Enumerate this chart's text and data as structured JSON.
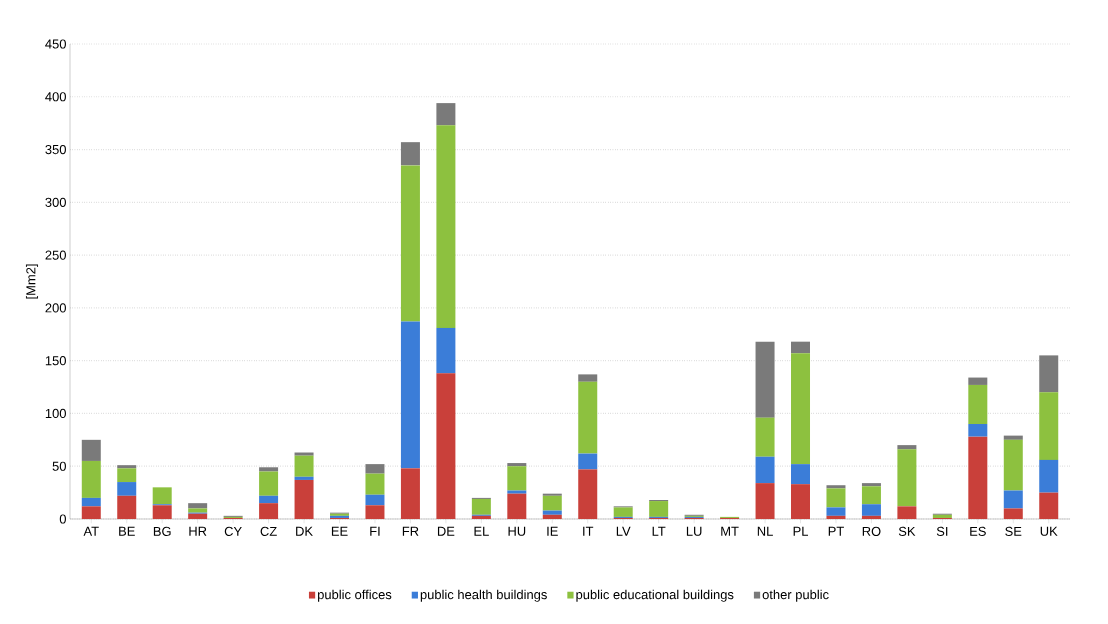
{
  "chart_data": {
    "type": "bar",
    "stacked": true,
    "ylabel": "[Mm2]",
    "categories": [
      "AT",
      "BE",
      "BG",
      "HR",
      "CY",
      "CZ",
      "DK",
      "EE",
      "FI",
      "FR",
      "DE",
      "EL",
      "HU",
      "IE",
      "IT",
      "LV",
      "LT",
      "LU",
      "MT",
      "NL",
      "PL",
      "PT",
      "RO",
      "SK",
      "SI",
      "ES",
      "SE",
      "UK"
    ],
    "series": [
      {
        "name": "public offices",
        "color": "#c9403a",
        "values": [
          12,
          22,
          13,
          5,
          1,
          15,
          37,
          1,
          13,
          48,
          138,
          3,
          24,
          4,
          47,
          1,
          1,
          1,
          1,
          34,
          33,
          3,
          3,
          12,
          1,
          78,
          10,
          25
        ]
      },
      {
        "name": "public health buildings",
        "color": "#3b7dd8",
        "values": [
          8,
          13,
          1,
          1,
          0,
          7,
          3,
          2,
          10,
          139,
          43,
          1,
          3,
          4,
          15,
          1,
          1,
          1,
          0,
          25,
          19,
          8,
          11,
          0,
          0,
          12,
          17,
          31
        ]
      },
      {
        "name": "public educational buildings",
        "color": "#8dc13f",
        "values": [
          35,
          13,
          16,
          4,
          1,
          23,
          20,
          2,
          20,
          148,
          192,
          15,
          23,
          14,
          68,
          9,
          15,
          1,
          1,
          37,
          105,
          18,
          17,
          54,
          3,
          37,
          48,
          64
        ]
      },
      {
        "name": "other public",
        "color": "#7a7a7a",
        "values": [
          20,
          3,
          0,
          5,
          1,
          4,
          3,
          1,
          9,
          22,
          21,
          1,
          3,
          2,
          7,
          1,
          1,
          1,
          0,
          72,
          11,
          3,
          3,
          4,
          1,
          7,
          4,
          35
        ]
      }
    ],
    "ylim": [
      0,
      450
    ],
    "yticks": [
      0,
      50,
      100,
      150,
      200,
      250,
      300,
      350,
      400,
      450
    ],
    "grid": "y",
    "legend": "bottom"
  }
}
